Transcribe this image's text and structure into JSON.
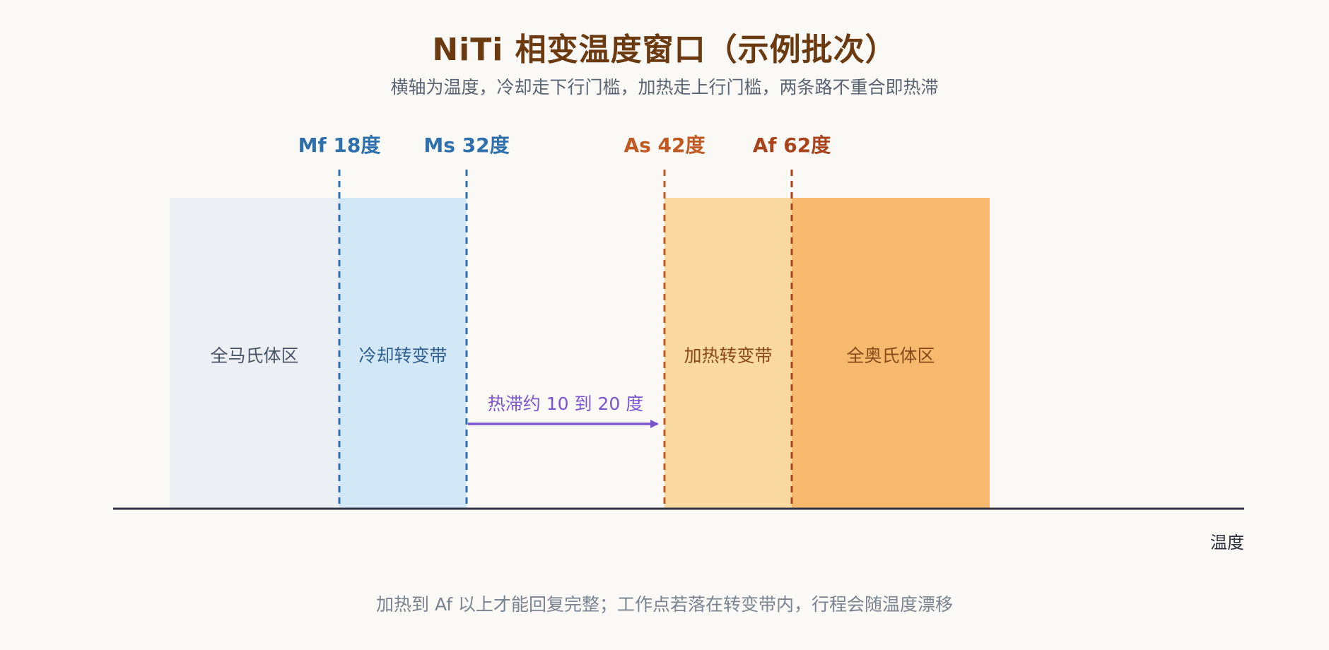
{
  "header": {
    "title": "NiTi 相变温度窗口（示例批次）",
    "subtitle": "横轴为温度，冷却走下行门槛，加热走上行门槛，两条路不重合即热滞"
  },
  "axis": {
    "label": "温度",
    "color": "#2d3340"
  },
  "zones": {
    "martensite": {
      "label": "全马氏体区",
      "color": "#eceff4",
      "text_color": "#4a5668"
    },
    "cooling": {
      "label": "冷却转变带",
      "color": "#d2e8f7",
      "text_color": "#2f5f8f"
    },
    "heating": {
      "label": "加热转变带",
      "color": "#fad9a0",
      "text_color": "#8a4a18"
    },
    "austenite": {
      "label": "全奥氏体区",
      "color": "#f6b96e",
      "text_color": "#8a4a18"
    }
  },
  "thresholds": {
    "mf": {
      "label": "Mf 18度",
      "color": "#2e6fad"
    },
    "ms": {
      "label": "Ms 32度",
      "color": "#2e6fad"
    },
    "as": {
      "label": "As 42度",
      "color": "#c05a22"
    },
    "af": {
      "label": "Af 62度",
      "color": "#a8431c"
    }
  },
  "hysteresis": {
    "label": "热滞约 10 到 20 度",
    "color": "#7b54d0"
  },
  "footer": {
    "note": "加热到 Af 以上才能回复完整；工作点若落在转变带内，行程会随温度漂移"
  }
}
